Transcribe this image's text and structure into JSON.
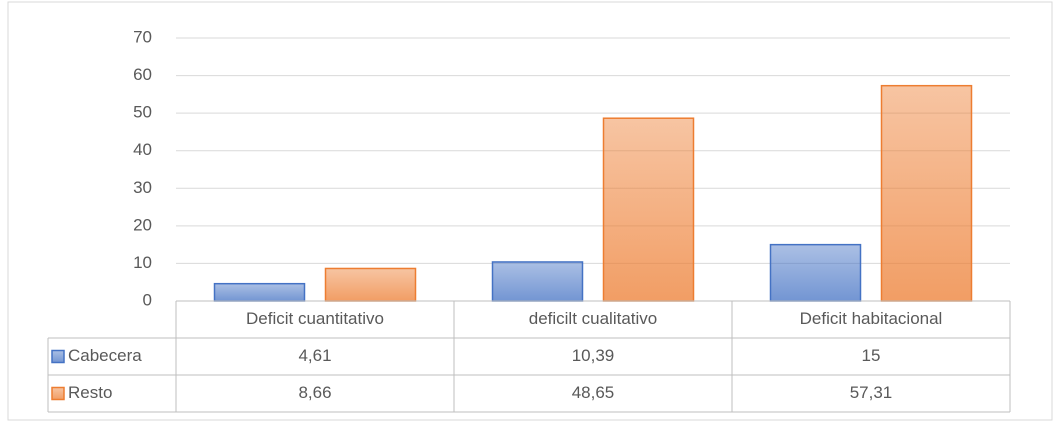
{
  "chart_data": {
    "type": "bar",
    "categories": [
      "Deficit cuantitativo",
      "deficilt cualitativo",
      "Deficit habitacional"
    ],
    "series": [
      {
        "name": "Cabecera",
        "color": "#4472c4",
        "values": [
          4.61,
          10.39,
          15
        ],
        "value_labels": [
          "4,61",
          "10,39",
          "15"
        ]
      },
      {
        "name": "Resto",
        "color": "#ed7d31",
        "values": [
          8.66,
          48.65,
          57.31
        ],
        "value_labels": [
          "8,66",
          "48,65",
          "57,31"
        ]
      }
    ],
    "ylim": [
      0,
      70
    ],
    "yticks": [
      0,
      10,
      20,
      30,
      40,
      50,
      60,
      70
    ],
    "grid": true,
    "data_table": true
  }
}
